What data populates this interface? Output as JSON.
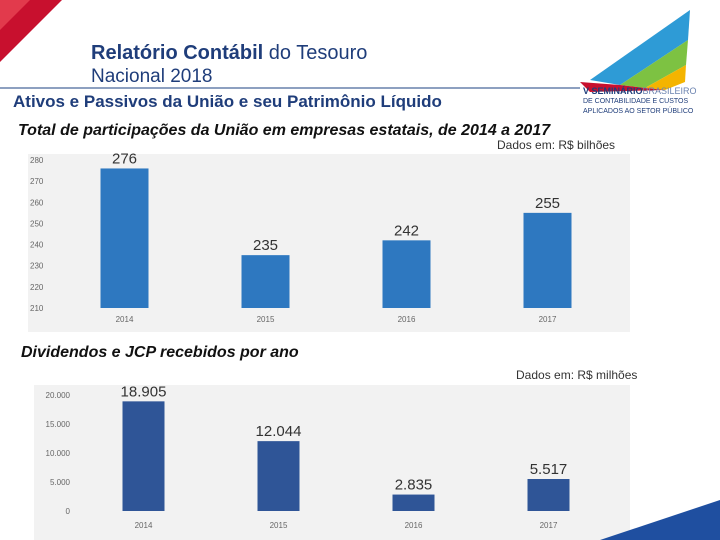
{
  "header": {
    "title_bold": "Relatório Contábil",
    "title_rest": " do Tesouro",
    "title_line2": "Nacional 2018",
    "subtitle": "Ativos e Passivos da União e seu Patrimônio Líquido"
  },
  "logo": {
    "line1_bold": "V SEMINÁRIO",
    "line1_rest": "BRASILEIRO",
    "line2": "DE CONTABILIDADE E CUSTOS",
    "line3": "APLICADOS AO SETOR PÚBLICO"
  },
  "colors": {
    "bar1": "#2e78c0",
    "bar2": "#2f5597",
    "brand": "#1f3d7a",
    "accent_red": "#c8102e"
  },
  "chart_data": [
    {
      "type": "bar",
      "title": "Total de participações da União em empresas estatais, de 2014 a 2017",
      "unit_label": "Dados em: R$ bilhões",
      "categories": [
        "2014",
        "2015",
        "2016",
        "2017"
      ],
      "values": [
        276,
        235,
        242,
        255
      ],
      "value_labels": [
        "276",
        "235",
        "242",
        "255"
      ],
      "yticks": [
        210,
        220,
        230,
        240,
        250,
        260,
        270,
        280
      ],
      "ylim": [
        210,
        280
      ],
      "xlabel": "",
      "ylabel": ""
    },
    {
      "type": "bar",
      "title": "Dividendos e JCP recebidos por ano",
      "unit_label": "Dados em: R$ milhões",
      "categories": [
        "2014",
        "2015",
        "2016",
        "2017"
      ],
      "values": [
        18905,
        12044,
        2835,
        5517
      ],
      "value_labels": [
        "18.905",
        "12.044",
        "2.835",
        "5.517"
      ],
      "yticks": [
        0,
        5000,
        10000,
        15000,
        20000
      ],
      "ytick_labels": [
        "0",
        "5.000",
        "10.000",
        "15.000",
        "20.000"
      ],
      "ylim": [
        0,
        20000
      ],
      "xlabel": "",
      "ylabel": ""
    }
  ]
}
